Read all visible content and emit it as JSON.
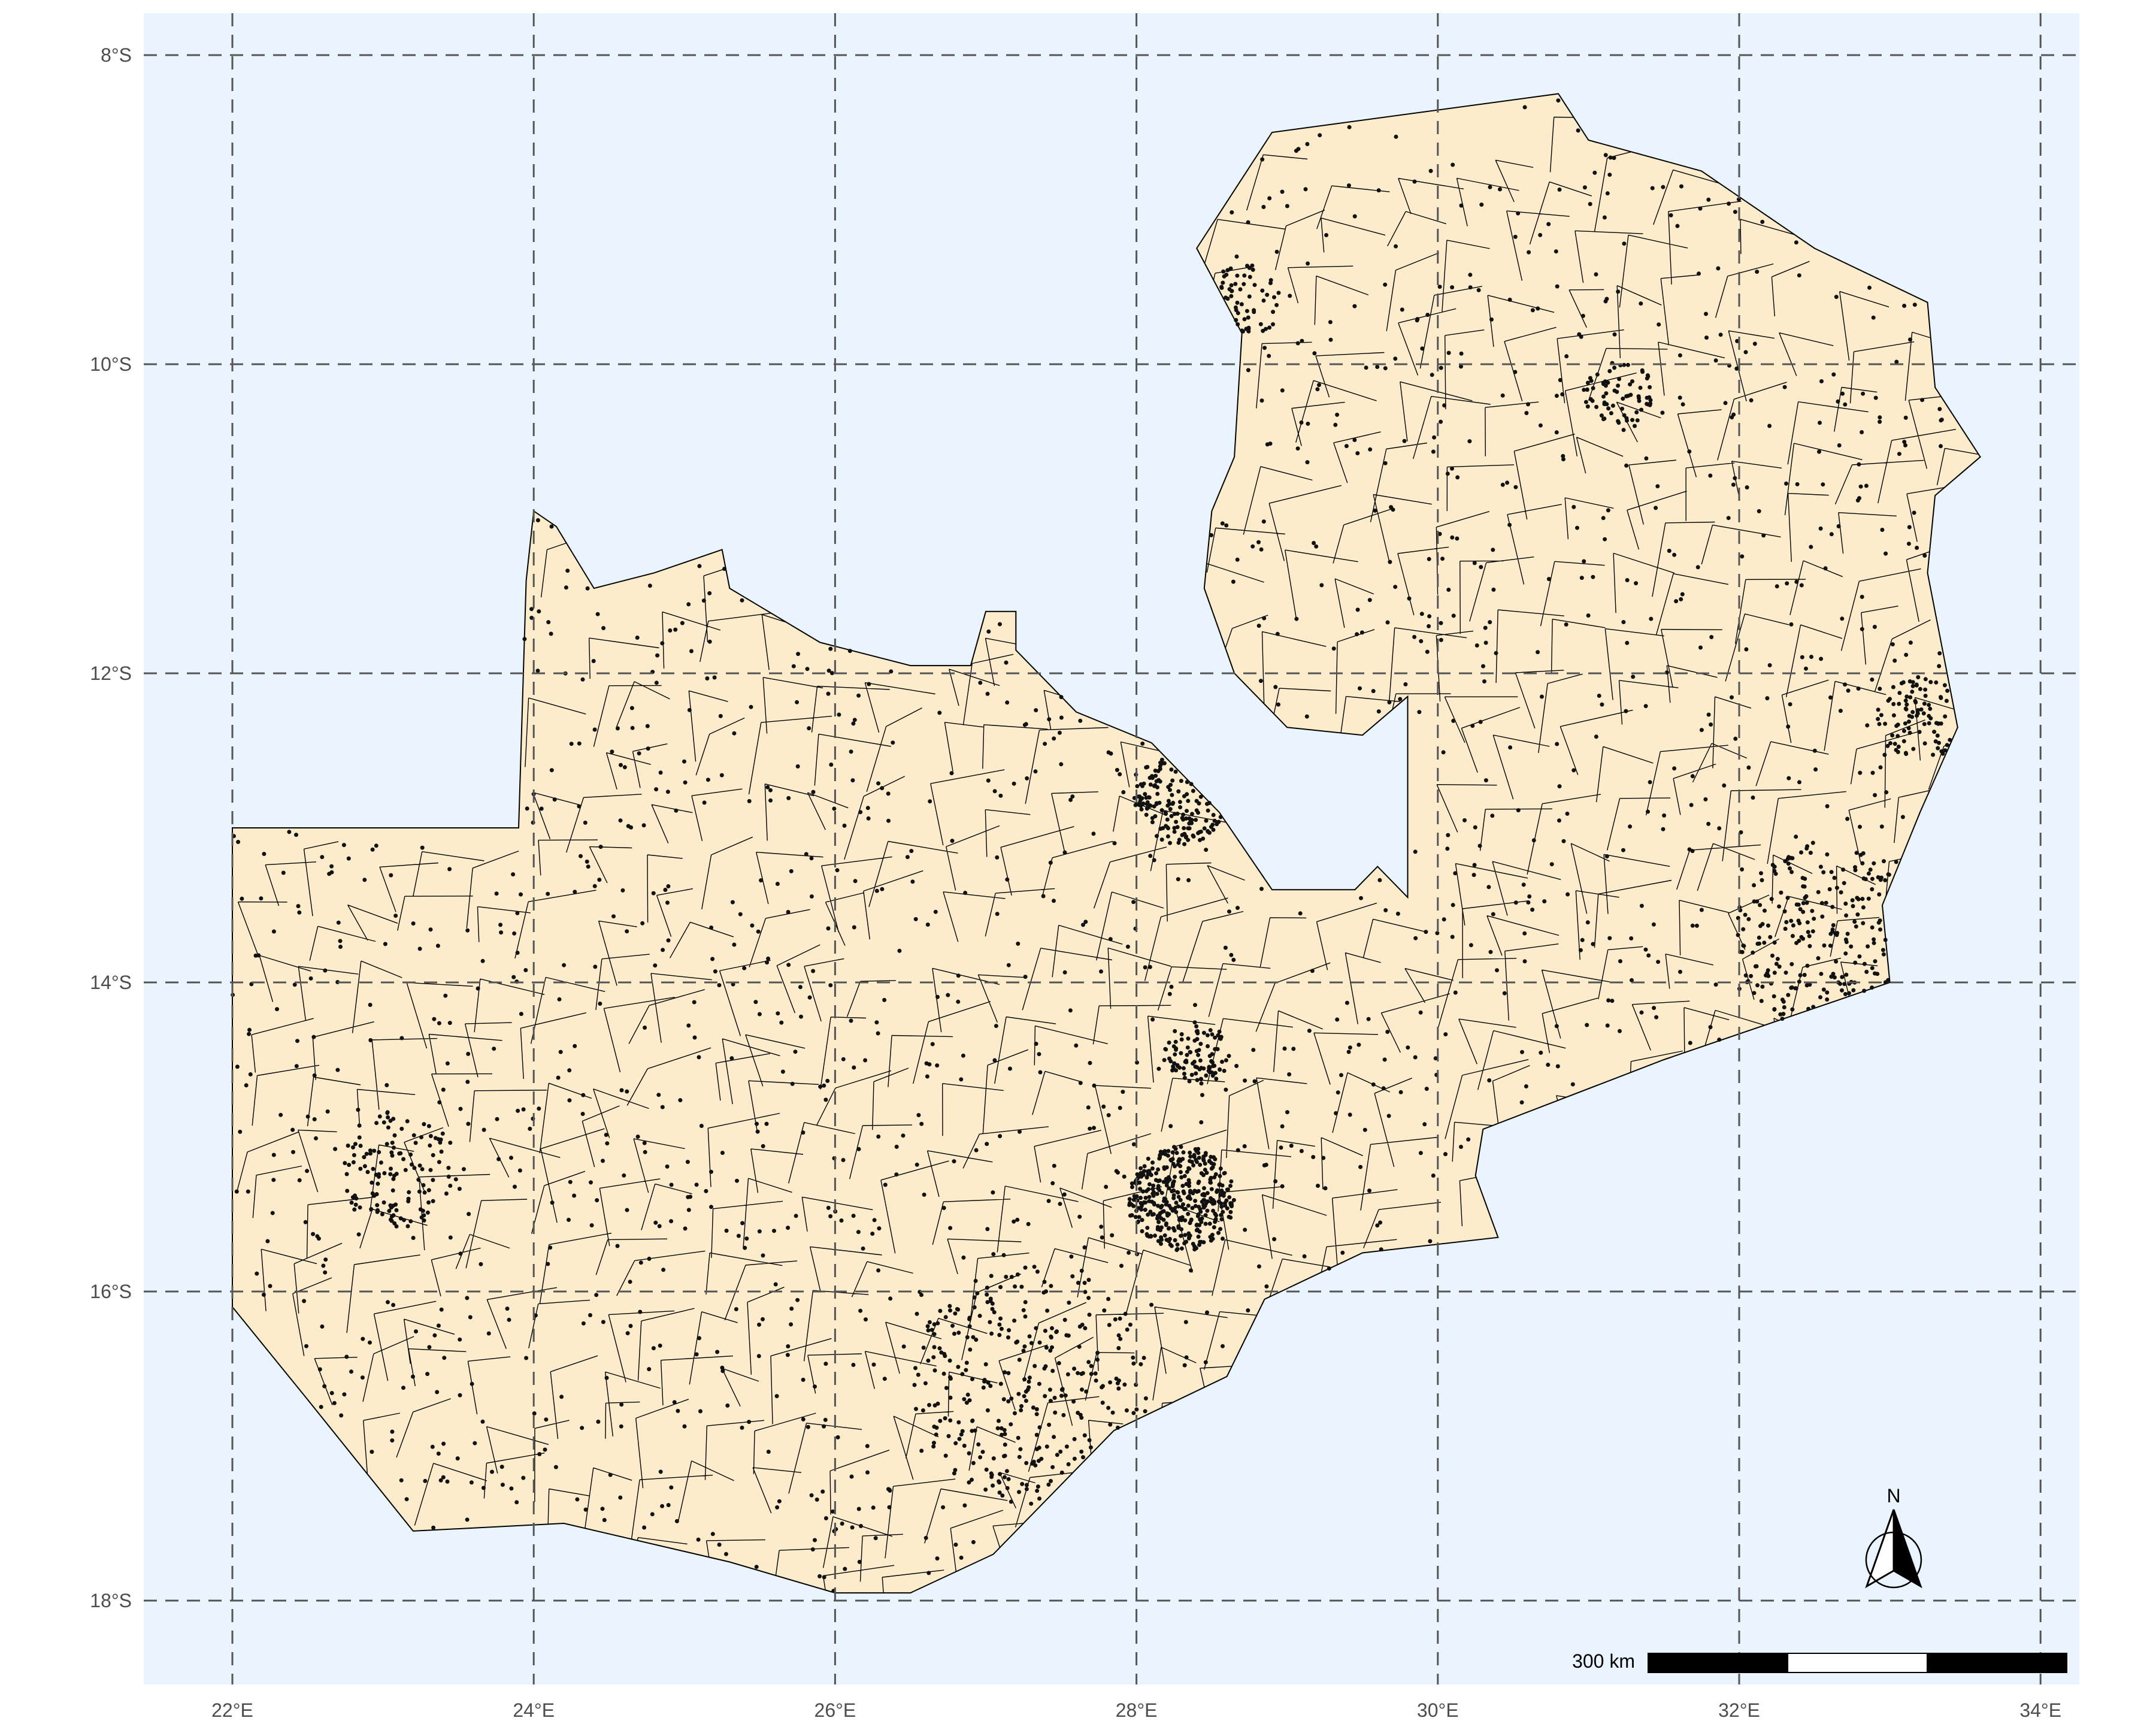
{
  "map": {
    "background_color": "#eaf4ff",
    "land_fill": "#fdeccb",
    "boundary_color": "#000000",
    "grid_color": "#555555",
    "point_color": "#111111",
    "extent": {
      "lon": [
        21.6,
        34.3
      ],
      "lat": [
        -18.55,
        -7.74
      ]
    },
    "graticule": {
      "lon": [
        22,
        24,
        26,
        28,
        30,
        32,
        34
      ],
      "lat": [
        -8,
        -10,
        -12,
        -14,
        -16,
        -18
      ],
      "lon_labels": [
        "22°E",
        "24°E",
        "26°E",
        "28°E",
        "30°E",
        "32°E",
        "34°E"
      ],
      "lat_labels": [
        "8°S",
        "10°S",
        "12°S",
        "14°S",
        "16°S",
        "18°S"
      ]
    },
    "scale_bar": {
      "label": "300 km",
      "segments": 3
    },
    "north_arrow": {
      "label": "N"
    },
    "country_outline": [
      [
        22.0,
        -13.0
      ],
      [
        23.9,
        -13.0
      ],
      [
        23.95,
        -11.4
      ],
      [
        24.0,
        -10.95
      ],
      [
        24.15,
        -11.05
      ],
      [
        24.4,
        -11.45
      ],
      [
        24.8,
        -11.35
      ],
      [
        25.25,
        -11.2
      ],
      [
        25.3,
        -11.45
      ],
      [
        25.9,
        -11.8
      ],
      [
        26.5,
        -11.95
      ],
      [
        26.9,
        -11.95
      ],
      [
        27.0,
        -11.6
      ],
      [
        27.2,
        -11.6
      ],
      [
        27.2,
        -11.85
      ],
      [
        27.6,
        -12.25
      ],
      [
        28.1,
        -12.45
      ],
      [
        28.55,
        -12.9
      ],
      [
        28.9,
        -13.4
      ],
      [
        29.45,
        -13.4
      ],
      [
        29.6,
        -13.25
      ],
      [
        29.8,
        -13.45
      ],
      [
        29.8,
        -12.15
      ],
      [
        29.5,
        -12.4
      ],
      [
        29.0,
        -12.35
      ],
      [
        28.65,
        -12.0
      ],
      [
        28.45,
        -11.45
      ],
      [
        28.5,
        -10.95
      ],
      [
        28.65,
        -10.6
      ],
      [
        28.7,
        -9.8
      ],
      [
        28.4,
        -9.25
      ],
      [
        28.9,
        -8.5
      ],
      [
        30.8,
        -8.25
      ],
      [
        31.0,
        -8.55
      ],
      [
        31.75,
        -8.75
      ],
      [
        32.5,
        -9.25
      ],
      [
        33.25,
        -9.6
      ],
      [
        33.3,
        -10.15
      ],
      [
        33.6,
        -10.6
      ],
      [
        33.3,
        -10.85
      ],
      [
        33.25,
        -11.35
      ],
      [
        33.45,
        -12.35
      ],
      [
        33.2,
        -12.9
      ],
      [
        32.95,
        -13.5
      ],
      [
        33.0,
        -14.0
      ],
      [
        31.5,
        -14.5
      ],
      [
        30.3,
        -14.95
      ],
      [
        30.25,
        -15.25
      ],
      [
        30.4,
        -15.65
      ],
      [
        29.5,
        -15.75
      ],
      [
        28.85,
        -16.05
      ],
      [
        28.6,
        -16.55
      ],
      [
        27.85,
        -16.9
      ],
      [
        27.05,
        -17.7
      ],
      [
        26.5,
        -17.95
      ],
      [
        26.0,
        -17.95
      ],
      [
        25.3,
        -17.75
      ],
      [
        24.2,
        -17.5
      ],
      [
        23.2,
        -17.55
      ],
      [
        22.5,
        -16.7
      ],
      [
        22.0,
        -16.1
      ]
    ]
  }
}
